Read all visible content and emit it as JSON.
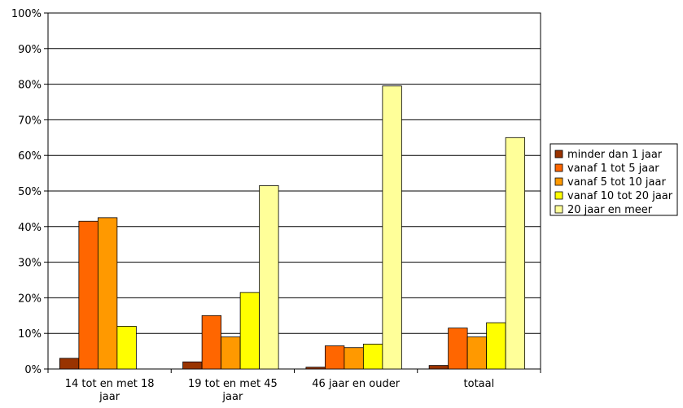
{
  "chart_data": {
    "type": "bar",
    "title": "",
    "xlabel": "",
    "ylabel": "",
    "ylim": [
      0,
      100
    ],
    "yticks": [
      "0%",
      "10%",
      "20%",
      "30%",
      "40%",
      "50%",
      "60%",
      "70%",
      "80%",
      "90%",
      "100%"
    ],
    "grid": true,
    "legend_position": "right",
    "categories": [
      [
        "14 tot en met 18",
        "jaar"
      ],
      [
        "19 tot en met 45",
        "jaar"
      ],
      [
        "46 jaar en ouder"
      ],
      [
        "totaal"
      ]
    ],
    "series": [
      {
        "name": "minder dan 1 jaar",
        "color": "#993300",
        "values": [
          3,
          2,
          0.5,
          1
        ]
      },
      {
        "name": "vanaf 1 tot 5 jaar",
        "color": "#FF6600",
        "values": [
          41.5,
          15,
          6.5,
          11.5
        ]
      },
      {
        "name": "vanaf 5 tot 10 jaar",
        "color": "#FF9900",
        "values": [
          42.5,
          9,
          6,
          9
        ]
      },
      {
        "name": "vanaf 10 tot 20 jaar",
        "color": "#FFFF00",
        "values": [
          12,
          21.5,
          7,
          13
        ]
      },
      {
        "name": "20 jaar en meer",
        "color": "#FFFF99",
        "values": [
          0,
          51.5,
          79.5,
          65
        ]
      }
    ]
  }
}
